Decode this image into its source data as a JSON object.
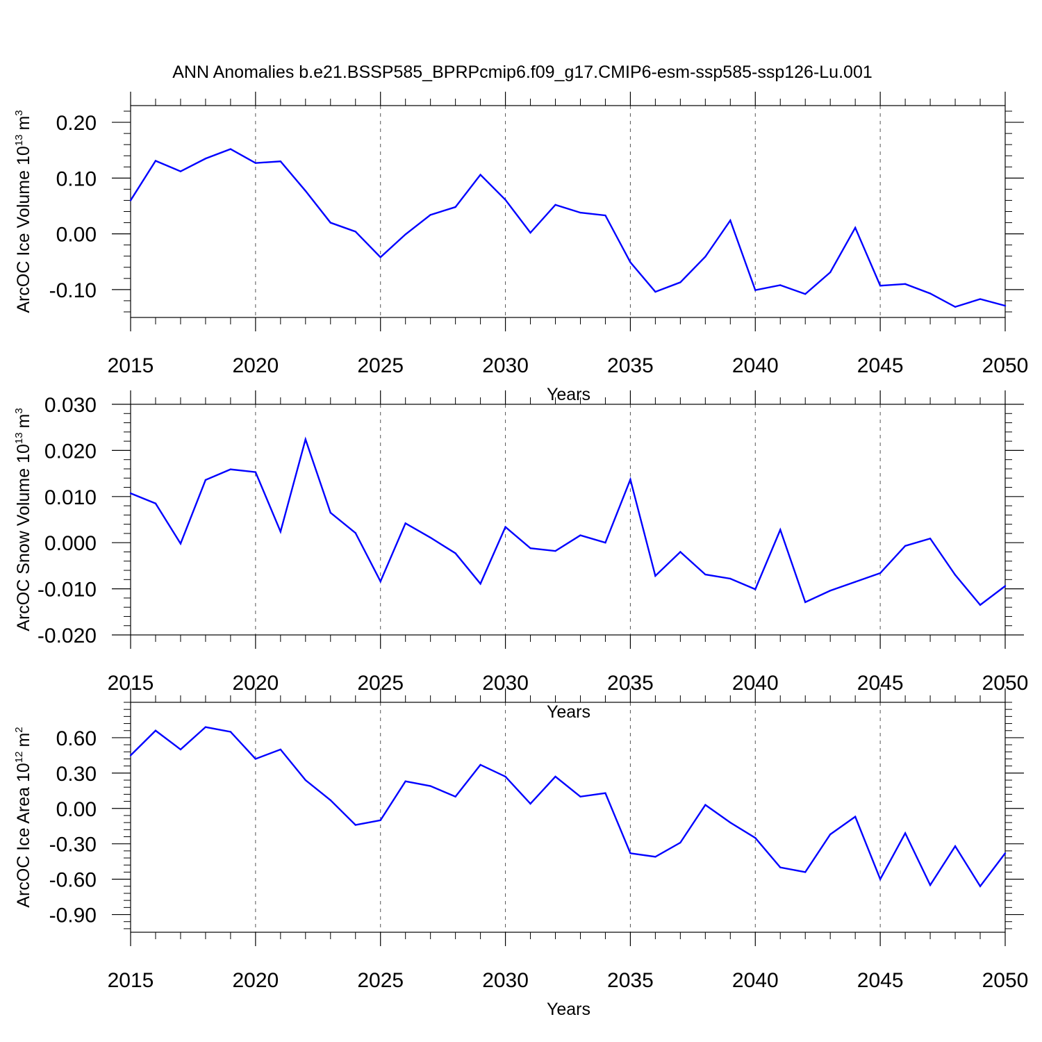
{
  "title": "ANN Anomalies b.e21.BSSP585_BPRPcmip6.f09_g17.CMIP6-esm-ssp585-ssp126-Lu.001",
  "chart_data": [
    {
      "type": "line",
      "name": "ice-volume",
      "xlabel": "Years",
      "ylabel": {
        "text": "ArcOC Ice Volume 10",
        "exponent": "13",
        "unit": "m",
        "unit_exp": "3"
      },
      "xlim": [
        2015,
        2050
      ],
      "ylim": [
        -0.15,
        0.23
      ],
      "xticks": [
        2015,
        2020,
        2025,
        2030,
        2035,
        2040,
        2045,
        2050
      ],
      "xtick_labels": [
        "2015",
        "2020",
        "2025",
        "2030",
        "2035",
        "2040",
        "2045",
        "2050"
      ],
      "yticks": [
        -0.1,
        0.0,
        0.1,
        0.2
      ],
      "ytick_labels": [
        "-0.10",
        "0.00",
        "0.10",
        "0.20"
      ],
      "yminor_step": 0.02,
      "grid": true,
      "color": "#0000ff",
      "x": [
        2015,
        2016,
        2017,
        2018,
        2019,
        2020,
        2021,
        2022,
        2023,
        2024,
        2025,
        2026,
        2027,
        2028,
        2029,
        2030,
        2031,
        2032,
        2033,
        2034,
        2035,
        2036,
        2037,
        2038,
        2039,
        2040,
        2041,
        2042,
        2043,
        2044,
        2045,
        2046,
        2047,
        2048,
        2049,
        2050
      ],
      "values": [
        0.06,
        0.131,
        0.112,
        0.135,
        0.152,
        0.127,
        0.13,
        0.077,
        0.02,
        0.004,
        -0.042,
        -0.001,
        0.034,
        0.048,
        0.106,
        0.061,
        0.002,
        0.052,
        0.038,
        0.033,
        -0.051,
        -0.104,
        -0.087,
        -0.041,
        0.024,
        -0.101,
        -0.092,
        -0.108,
        -0.069,
        0.011,
        -0.093,
        -0.09,
        -0.107,
        -0.131,
        -0.117,
        -0.129
      ]
    },
    {
      "type": "line",
      "name": "snow-volume",
      "xlabel": "Years",
      "ylabel": {
        "text": "ArcOC Snow Volume 10",
        "exponent": "13",
        "unit": "m",
        "unit_exp": "3"
      },
      "xlim": [
        2015,
        2050
      ],
      "ylim": [
        -0.02,
        0.03
      ],
      "xticks": [
        2015,
        2020,
        2025,
        2030,
        2035,
        2040,
        2045,
        2050
      ],
      "xtick_labels": [
        "2015",
        "2020",
        "2025",
        "2030",
        "2035",
        "2040",
        "2045",
        "2050"
      ],
      "yticks": [
        -0.02,
        -0.01,
        0.0,
        0.01,
        0.02,
        0.03
      ],
      "ytick_labels": [
        "-0.020",
        "-0.010",
        "0.000",
        "0.010",
        "0.020",
        "0.030"
      ],
      "yminor_step": 0.002,
      "grid": true,
      "color": "#0000ff",
      "x": [
        2015,
        2016,
        2017,
        2018,
        2019,
        2020,
        2021,
        2022,
        2023,
        2024,
        2025,
        2026,
        2027,
        2028,
        2029,
        2030,
        2031,
        2032,
        2033,
        2034,
        2035,
        2036,
        2037,
        2038,
        2039,
        2040,
        2041,
        2042,
        2043,
        2044,
        2045,
        2046,
        2047,
        2048,
        2049,
        2050
      ],
      "values": [
        0.0107,
        0.0085,
        -0.0002,
        0.0136,
        0.0159,
        0.0153,
        0.0024,
        0.0224,
        0.0065,
        0.0021,
        -0.0084,
        0.0042,
        0.0011,
        -0.0023,
        -0.0089,
        0.0034,
        -0.0012,
        -0.0018,
        0.0016,
        0.0,
        0.0137,
        -0.0072,
        -0.002,
        -0.0069,
        -0.0078,
        -0.0101,
        0.0028,
        -0.0129,
        -0.0104,
        -0.0085,
        -0.0066,
        -0.0007,
        0.0009,
        -0.007,
        -0.0135,
        -0.0094
      ]
    },
    {
      "type": "line",
      "name": "ice-area",
      "xlabel": "Years",
      "ylabel": {
        "text": "ArcOC Ice Area 10",
        "exponent": "12",
        "unit": "m",
        "unit_exp": "2"
      },
      "xlim": [
        2015,
        2050
      ],
      "ylim": [
        -1.05,
        0.9
      ],
      "xticks": [
        2015,
        2020,
        2025,
        2030,
        2035,
        2040,
        2045,
        2050
      ],
      "xtick_labels": [
        "2015",
        "2020",
        "2025",
        "2030",
        "2035",
        "2040",
        "2045",
        "2050"
      ],
      "yticks": [
        -0.9,
        -0.6,
        -0.3,
        0.0,
        0.3,
        0.6
      ],
      "ytick_labels": [
        "-0.90",
        "-0.60",
        "-0.30",
        "0.00",
        "0.30",
        "0.60"
      ],
      "yminor_step": 0.06,
      "grid": true,
      "color": "#0000ff",
      "x": [
        2015,
        2016,
        2017,
        2018,
        2019,
        2020,
        2021,
        2022,
        2023,
        2024,
        2025,
        2026,
        2027,
        2028,
        2029,
        2030,
        2031,
        2032,
        2033,
        2034,
        2035,
        2036,
        2037,
        2038,
        2039,
        2040,
        2041,
        2042,
        2043,
        2044,
        2045,
        2046,
        2047,
        2048,
        2049,
        2050
      ],
      "values": [
        0.45,
        0.66,
        0.5,
        0.69,
        0.65,
        0.42,
        0.5,
        0.24,
        0.07,
        -0.14,
        -0.1,
        0.23,
        0.19,
        0.1,
        0.37,
        0.27,
        0.04,
        0.27,
        0.1,
        0.13,
        -0.38,
        -0.41,
        -0.29,
        0.03,
        -0.12,
        -0.25,
        -0.5,
        -0.54,
        -0.22,
        -0.07,
        -0.6,
        -0.21,
        -0.65,
        -0.32,
        -0.66,
        -0.38
      ]
    }
  ]
}
